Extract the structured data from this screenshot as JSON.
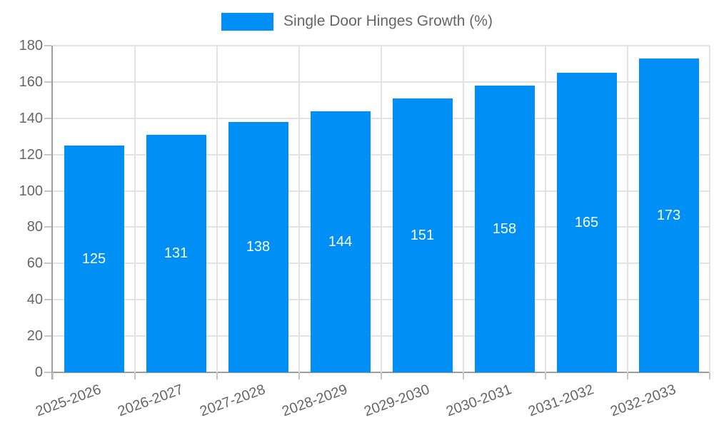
{
  "legend": {
    "label": "Single Door Hinges Growth (%)",
    "swatch_color": "#0090F5"
  },
  "chart_data": {
    "type": "bar",
    "title": "",
    "series_name": "Single Door Hinges Growth (%)",
    "categories": [
      "2025-2026",
      "2026-2027",
      "2027-2028",
      "2028-2029",
      "2029-2030",
      "2030-2031",
      "2031-2032",
      "2032-2033"
    ],
    "values": [
      125,
      131,
      138,
      144,
      151,
      158,
      165,
      173
    ],
    "value_labels": [
      "125",
      "131",
      "138",
      "144",
      "151",
      "158",
      "165",
      "173"
    ],
    "ylim": [
      0,
      180
    ],
    "yticks": [
      0,
      20,
      40,
      60,
      80,
      100,
      120,
      140,
      160,
      180
    ],
    "xlabel": "",
    "ylabel": "",
    "grid": true,
    "legend_position": "top",
    "bar_color": "#0090F5",
    "value_label_color": "#ffffff",
    "axis_text_color": "#666666",
    "gridline_color": "#e3e3e3",
    "axis_line_color": "#9e9e9e",
    "tick_color": "#c6c6c6",
    "background_color": "#ffffff"
  }
}
